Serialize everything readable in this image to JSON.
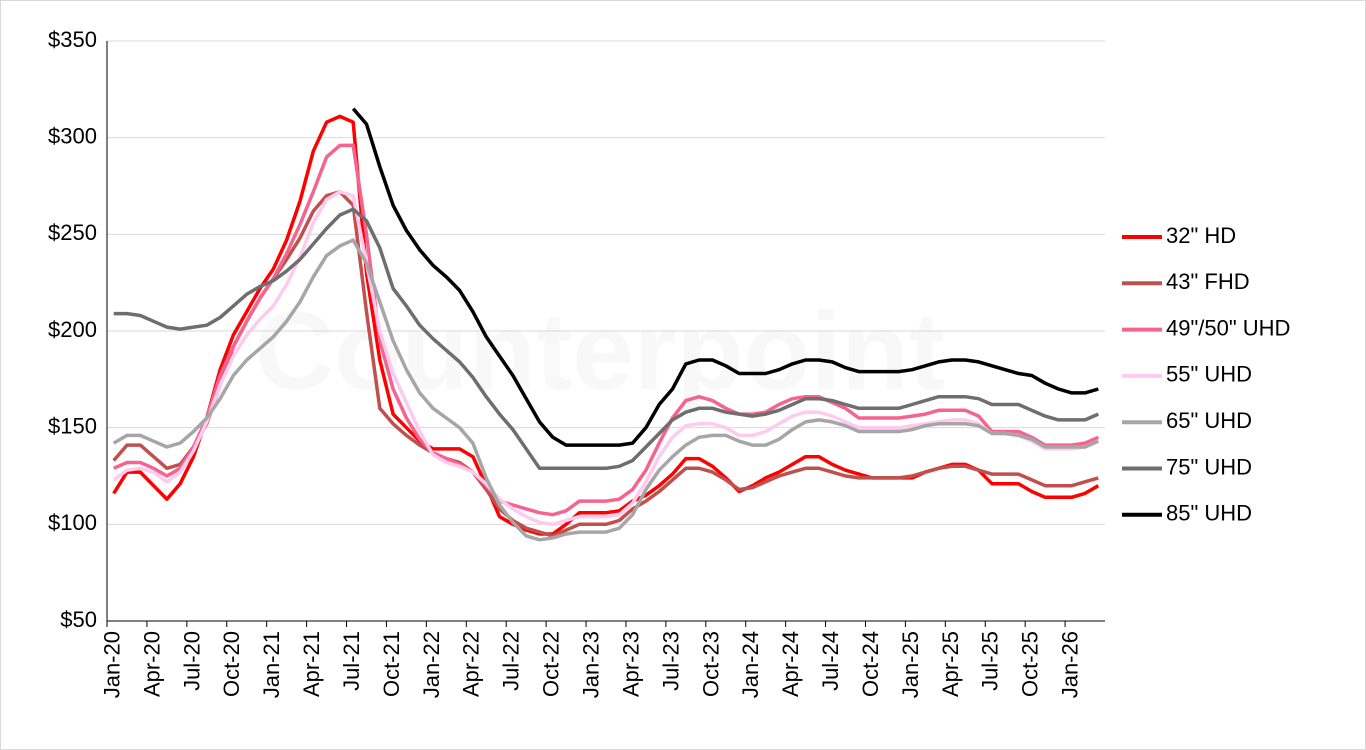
{
  "chart_data": {
    "type": "line",
    "watermark": "Counterpoint",
    "categories": [
      "Jan-20",
      null,
      null,
      "Apr-20",
      null,
      null,
      "Jul-20",
      null,
      null,
      "Oct-20",
      null,
      null,
      "Jan-21",
      null,
      null,
      "Apr-21",
      null,
      null,
      "Jul-21",
      null,
      null,
      "Oct-21",
      null,
      null,
      "Jan-22",
      null,
      null,
      "Apr-22",
      null,
      null,
      "Jul-22",
      null,
      null,
      "Oct-22",
      null,
      null,
      "Jan-23",
      null,
      null,
      "Apr-23",
      null,
      null,
      "Jul-23",
      null,
      null,
      "Oct-23",
      null,
      null,
      "Jan-24",
      null,
      null,
      "Apr-24",
      null,
      null,
      "Jul-24",
      null,
      null,
      "Oct-24",
      null,
      null,
      "Jan-25",
      null,
      null,
      "Apr-25",
      null,
      null,
      "Jul-25",
      null,
      null,
      "Oct-25",
      null,
      null,
      "Jan-26",
      null,
      null
    ],
    "series": [
      {
        "name": "32\" HD",
        "color": "#ff0000",
        "values": [
          116,
          127,
          127,
          120,
          113,
          121,
          135,
          155,
          180,
          198,
          210,
          222,
          232,
          247,
          267,
          293,
          308,
          311,
          308,
          230,
          185,
          157,
          150,
          143,
          139,
          139,
          139,
          135,
          120,
          104,
          100,
          97,
          95,
          95,
          100,
          106,
          106,
          106,
          107,
          112,
          115,
          120,
          126,
          134,
          134,
          130,
          124,
          117,
          120,
          124,
          127,
          131,
          135,
          135,
          131,
          128,
          126,
          124,
          124,
          124,
          124,
          127,
          129,
          131,
          131,
          128,
          121,
          121,
          121,
          117,
          114,
          114,
          114,
          116,
          120
        ]
      },
      {
        "name": "43\" FHD",
        "color": "#c0504d",
        "values": [
          133,
          141,
          141,
          135,
          129,
          131,
          140,
          152,
          172,
          192,
          205,
          217,
          227,
          237,
          248,
          262,
          270,
          272,
          265,
          210,
          160,
          152,
          146,
          141,
          137,
          134,
          132,
          127,
          118,
          108,
          102,
          98,
          96,
          94,
          97,
          100,
          100,
          100,
          102,
          108,
          112,
          117,
          123,
          129,
          129,
          127,
          123,
          118,
          119,
          122,
          125,
          127,
          129,
          129,
          127,
          125,
          124,
          124,
          124,
          124,
          125,
          127,
          129,
          130,
          130,
          128,
          126,
          126,
          126,
          123,
          120,
          120,
          120,
          122,
          124
        ]
      },
      {
        "name": "49\"/50\" UHD",
        "color": "#f4648f",
        "values": [
          129,
          132,
          132,
          129,
          125,
          129,
          140,
          155,
          177,
          192,
          205,
          217,
          227,
          240,
          255,
          272,
          290,
          296,
          296,
          250,
          195,
          170,
          155,
          144,
          137,
          134,
          131,
          127,
          120,
          112,
          110,
          108,
          106,
          105,
          107,
          112,
          112,
          112,
          113,
          118,
          128,
          142,
          155,
          164,
          166,
          164,
          160,
          157,
          157,
          158,
          162,
          165,
          166,
          166,
          163,
          160,
          155,
          155,
          155,
          155,
          156,
          157,
          159,
          159,
          159,
          156,
          148,
          148,
          148,
          145,
          141,
          141,
          141,
          142,
          145
        ]
      },
      {
        "name": "55\" UHD",
        "color": "#ffcaf0",
        "values": [
          123,
          128,
          129,
          127,
          122,
          127,
          138,
          153,
          172,
          187,
          198,
          206,
          213,
          224,
          238,
          256,
          268,
          272,
          270,
          235,
          200,
          178,
          163,
          148,
          136,
          132,
          130,
          127,
          121,
          113,
          108,
          104,
          101,
          100,
          102,
          104,
          104,
          104,
          105,
          111,
          122,
          135,
          145,
          151,
          152,
          152,
          150,
          146,
          146,
          148,
          152,
          156,
          158,
          158,
          156,
          153,
          150,
          150,
          150,
          150,
          151,
          152,
          153,
          154,
          154,
          152,
          147,
          147,
          146,
          143,
          139,
          139,
          139,
          140,
          143
        ]
      },
      {
        "name": "65\" UHD",
        "color": "#a6a6a6",
        "values": [
          142,
          146,
          146,
          143,
          140,
          142,
          148,
          155,
          165,
          177,
          185,
          191,
          197,
          205,
          215,
          228,
          239,
          244,
          247,
          235,
          215,
          195,
          180,
          168,
          160,
          155,
          150,
          142,
          124,
          110,
          101,
          94,
          92,
          93,
          95,
          96,
          96,
          96,
          98,
          105,
          118,
          128,
          135,
          141,
          145,
          146,
          146,
          143,
          141,
          141,
          144,
          149,
          153,
          154,
          153,
          151,
          148,
          148,
          148,
          148,
          149,
          151,
          152,
          152,
          152,
          151,
          147,
          147,
          146,
          144,
          140,
          140,
          140,
          140,
          143
        ]
      },
      {
        "name": "75\" UHD",
        "color": "#6e6e6e",
        "values": [
          209,
          209,
          208,
          205,
          202,
          201,
          202,
          203,
          207,
          213,
          219,
          223,
          226,
          231,
          237,
          245,
          253,
          260,
          263,
          257,
          243,
          222,
          213,
          203,
          196,
          190,
          184,
          176,
          166,
          157,
          149,
          139,
          129,
          129,
          129,
          129,
          129,
          129,
          130,
          133,
          140,
          147,
          154,
          158,
          160,
          160,
          158,
          157,
          156,
          157,
          159,
          162,
          165,
          165,
          164,
          162,
          160,
          160,
          160,
          160,
          162,
          164,
          166,
          166,
          166,
          165,
          162,
          162,
          162,
          159,
          156,
          154,
          154,
          154,
          157
        ]
      },
      {
        "name": "85\" UHD",
        "color": "#000000",
        "values": [
          null,
          null,
          null,
          null,
          null,
          null,
          null,
          null,
          null,
          null,
          null,
          null,
          null,
          null,
          null,
          null,
          null,
          null,
          315,
          307,
          285,
          265,
          252,
          242,
          234,
          228,
          221,
          210,
          197,
          187,
          177,
          165,
          153,
          145,
          141,
          141,
          141,
          141,
          141,
          142,
          150,
          162,
          170,
          183,
          185,
          185,
          182,
          178,
          178,
          178,
          180,
          183,
          185,
          185,
          184,
          181,
          179,
          179,
          179,
          179,
          180,
          182,
          184,
          185,
          185,
          184,
          182,
          180,
          178,
          177,
          173,
          170,
          168,
          168,
          170
        ]
      }
    ],
    "ylim": [
      50,
      350
    ],
    "yticks": [
      {
        "value": 50,
        "label": "$50"
      },
      {
        "value": 100,
        "label": "$100"
      },
      {
        "value": 150,
        "label": "$150"
      },
      {
        "value": 200,
        "label": "$200"
      },
      {
        "value": 250,
        "label": "$250"
      },
      {
        "value": 300,
        "label": "$300"
      },
      {
        "value": 350,
        "label": "$350"
      }
    ],
    "grid": true,
    "legend": "right"
  }
}
